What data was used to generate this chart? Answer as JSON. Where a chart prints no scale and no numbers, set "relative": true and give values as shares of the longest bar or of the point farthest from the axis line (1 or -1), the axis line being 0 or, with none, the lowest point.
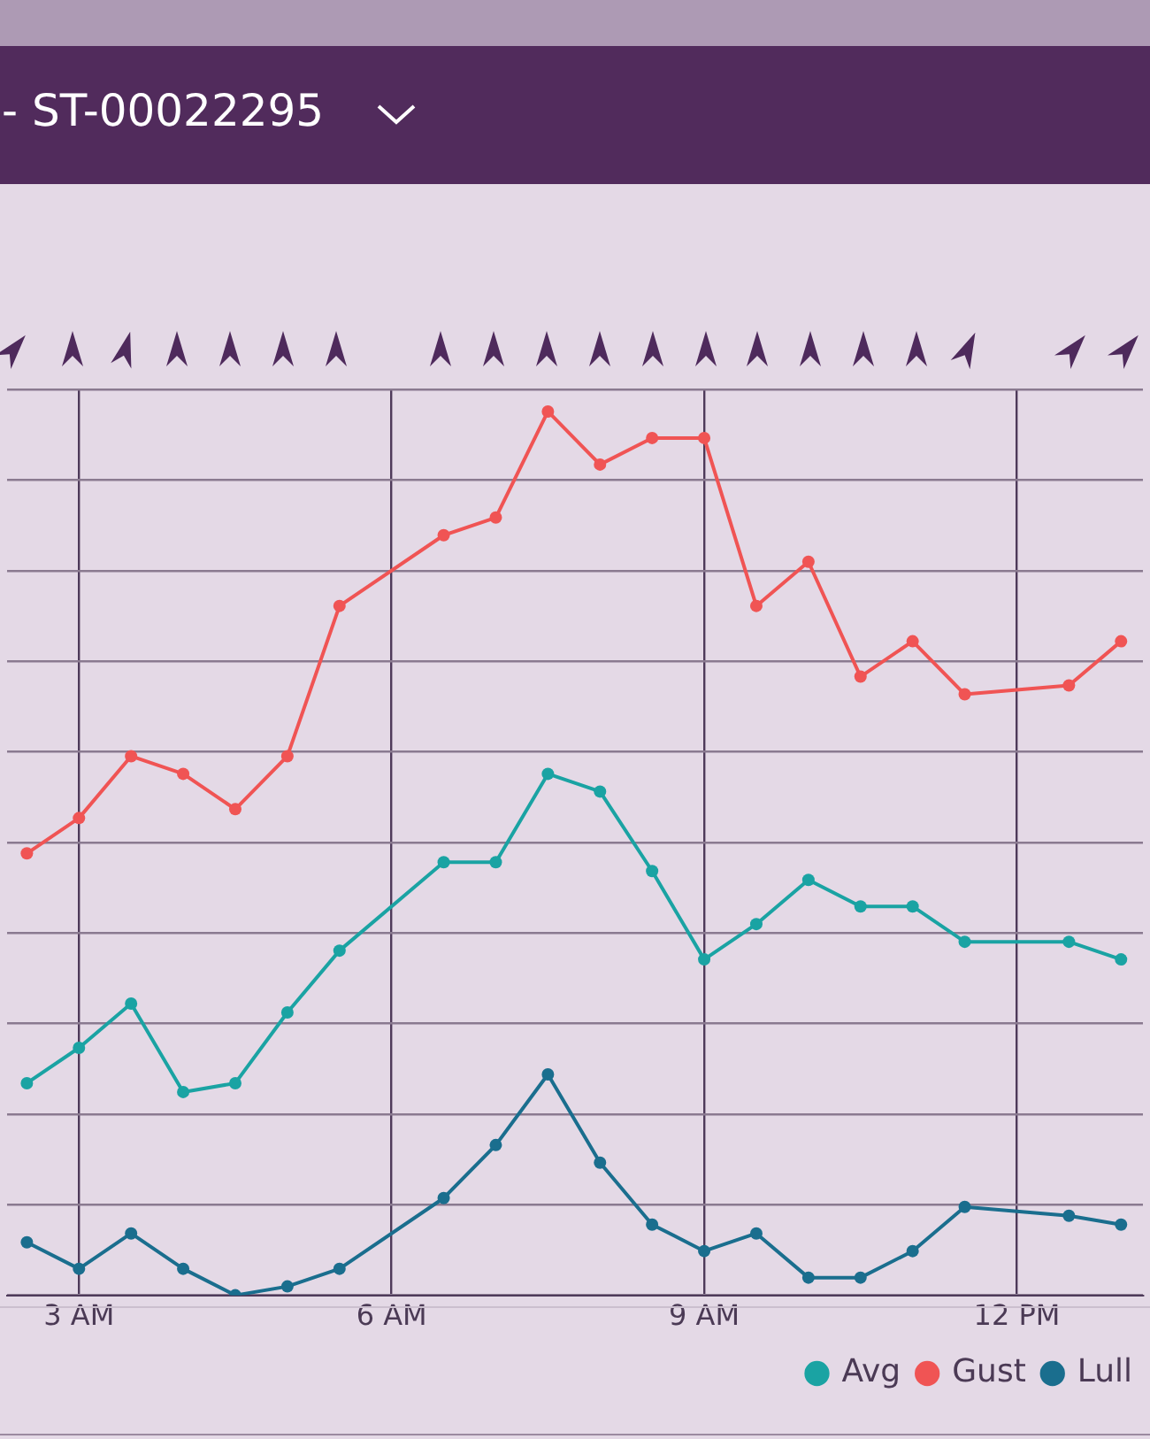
{
  "chart_data": {
    "type": "line",
    "title": "- ST-00022295",
    "relative": true,
    "x": [
      2.5,
      3,
      3.5,
      4,
      4.5,
      5,
      5.5,
      6.5,
      7,
      7.5,
      8,
      8.5,
      9,
      9.5,
      10,
      10.5,
      11,
      11.5,
      12.5,
      13
    ],
    "xlim": [
      2.31,
      13.21
    ],
    "xticks": [
      {
        "value": 3,
        "label": "3 AM"
      },
      {
        "value": 6,
        "label": "6 AM"
      },
      {
        "value": 9,
        "label": "9 AM"
      },
      {
        "value": 12,
        "label": "12 PM"
      }
    ],
    "series": [
      {
        "name": "Avg",
        "color": "#1aa3a3",
        "values": [
          0.24,
          0.28,
          0.33,
          0.23,
          0.24,
          0.32,
          0.39,
          0.49,
          0.49,
          0.59,
          0.57,
          0.48,
          0.38,
          0.42,
          0.47,
          0.44,
          0.44,
          0.4,
          0.4,
          0.38
        ]
      },
      {
        "name": "Gust",
        "color": "#f05454",
        "values": [
          0.5,
          0.54,
          0.61,
          0.59,
          0.55,
          0.61,
          0.78,
          0.86,
          0.88,
          1.0,
          0.94,
          0.97,
          0.97,
          0.78,
          0.83,
          0.7,
          0.74,
          0.68,
          0.69,
          0.74
        ]
      },
      {
        "name": "Lull",
        "color": "#1a6e8e",
        "values": [
          0.06,
          0.03,
          0.07,
          0.03,
          0.0,
          0.01,
          0.03,
          0.11,
          0.17,
          0.25,
          0.15,
          0.08,
          0.05,
          0.07,
          0.02,
          0.02,
          0.05,
          0.1,
          0.09,
          0.08
        ]
      }
    ],
    "grid": true,
    "legend": "bottom right",
    "marker": "circle",
    "line_style": "solid"
  }
}
